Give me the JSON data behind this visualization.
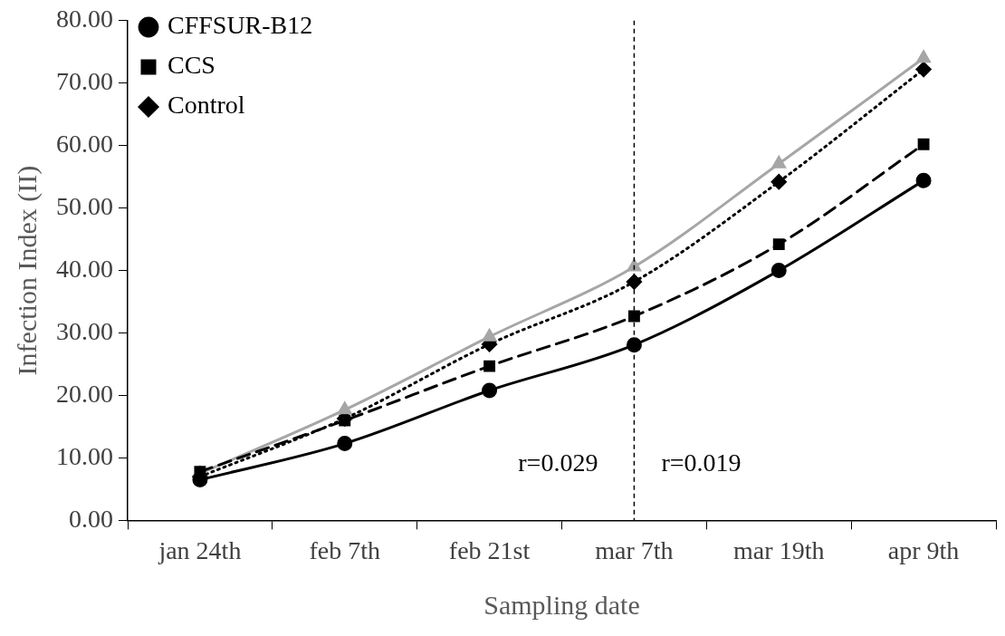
{
  "chart_data": {
    "type": "line",
    "xlabel": "Sampling date",
    "ylabel": "Infection Index (II)",
    "categories": [
      "jan 24th",
      "feb 7th",
      "feb 21st",
      "mar 7th",
      "mar 19th",
      "apr 9th"
    ],
    "series": [
      {
        "name": "CFFSUR-B12",
        "color": "#000000",
        "marker": "circle",
        "line_style": "solid",
        "values": [
          6.5,
          12.3,
          20.8,
          28.1,
          40.0,
          54.4
        ]
      },
      {
        "name": "CCS",
        "color": "#000000",
        "marker": "square",
        "line_style": "dashed",
        "values": [
          7.8,
          16.0,
          24.7,
          32.7,
          44.2,
          60.2
        ]
      },
      {
        "color": "#a6a6a6",
        "marker": "triangle",
        "line_style": "solid",
        "values": [
          7.5,
          17.7,
          29.4,
          40.6,
          57.1,
          74.0
        ]
      },
      {
        "name": "Control",
        "color": "#000000",
        "marker": "diamond",
        "line_style": "dotted",
        "values": [
          7.0,
          16.3,
          28.2,
          38.2,
          54.2,
          72.2
        ]
      }
    ],
    "ylim": [
      0,
      80
    ],
    "yticks": [
      {
        "value": 0,
        "label": "0.00"
      },
      {
        "value": 10,
        "label": "10.00"
      },
      {
        "value": 20,
        "label": "20.00"
      },
      {
        "value": 30,
        "label": "30.00"
      },
      {
        "value": 40,
        "label": "40.00"
      },
      {
        "value": 50,
        "label": "50.00"
      },
      {
        "value": 60,
        "label": "60.00"
      },
      {
        "value": 70,
        "label": "70.00"
      },
      {
        "value": 80,
        "label": "80.00"
      }
    ],
    "ref_lines": [
      {
        "axis": "x",
        "value": "mar 7th",
        "color": "#000000",
        "line_style": "dashed"
      }
    ],
    "annotations": [
      "r=0.029",
      "r=0.019"
    ],
    "grid": false,
    "legend": "top left"
  }
}
